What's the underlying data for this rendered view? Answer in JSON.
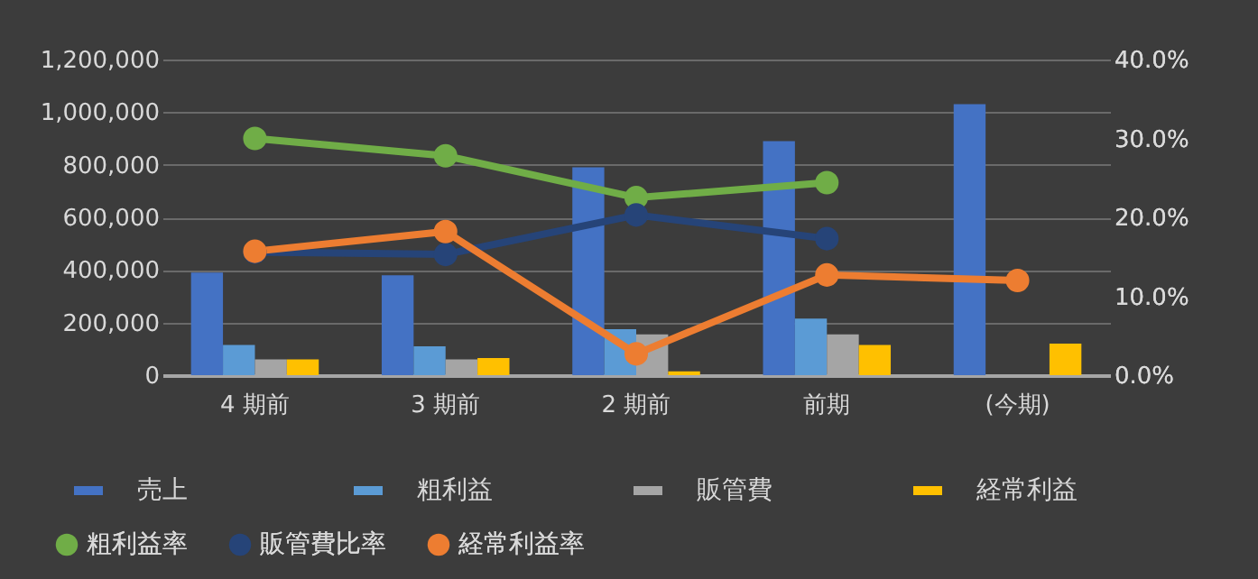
{
  "chart_data": {
    "type": "bar",
    "categories": [
      "4 期前",
      "3 期前",
      "2 期前",
      "前期",
      "(今期)"
    ],
    "series": [
      {
        "name": "売上",
        "color": "#4472c4",
        "values": [
          390000,
          380000,
          790000,
          890000,
          1030000
        ]
      },
      {
        "name": "粗利益",
        "color": "#5b9bd5",
        "values": [
          115000,
          110000,
          175000,
          215000,
          null
        ]
      },
      {
        "name": "販管費",
        "color": "#a5a5a5",
        "values": [
          60000,
          60000,
          155000,
          155000,
          null
        ]
      },
      {
        "name": "経常利益",
        "color": "#ffc000",
        "values": [
          60000,
          65000,
          15000,
          115000,
          120000
        ]
      },
      {
        "name": "粗利益率",
        "type": "line",
        "axis": "y2",
        "color": "#70ad47",
        "values": [
          30.0,
          27.8,
          22.5,
          24.4,
          null
        ]
      },
      {
        "name": "販管費比率",
        "type": "line",
        "axis": "y2",
        "color": "#264478",
        "values": [
          15.6,
          15.3,
          20.3,
          17.3,
          null
        ]
      },
      {
        "name": "経常利益率",
        "type": "line",
        "axis": "y2",
        "color": "#ed7d31",
        "values": [
          15.7,
          18.2,
          2.7,
          12.7,
          12.0
        ]
      }
    ],
    "ylim": [
      0,
      1200000
    ],
    "yticks": [
      0,
      {
        "value": 200000,
        "label": "200,000"
      },
      {
        "value": 400000,
        "label": "400,000"
      },
      {
        "value": 600000,
        "label": "600,000"
      },
      {
        "value": 800000,
        "label": "800,000"
      },
      {
        "value": 1000000,
        "label": "1,000,000"
      },
      {
        "value": 1200000,
        "label": "1,200,000"
      }
    ],
    "y2lim": [
      0,
      40
    ],
    "y2ticks": [
      {
        "value": 0,
        "label": "0.0%"
      },
      {
        "value": 10,
        "label": "10.0%"
      },
      {
        "value": 20,
        "label": "20.0%"
      },
      {
        "value": 30,
        "label": "30.0%"
      },
      {
        "value": 40,
        "label": "40.0%"
      }
    ],
    "grid": "y",
    "legend": "bottom",
    "marker": "circle"
  }
}
